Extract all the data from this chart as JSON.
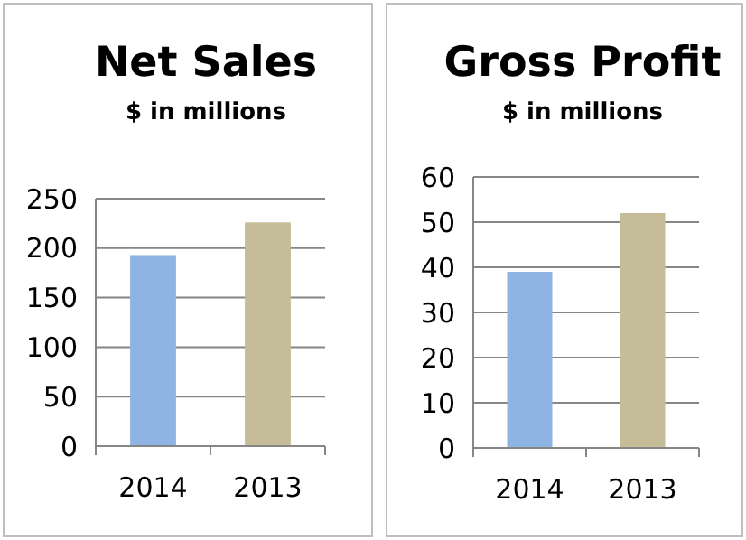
{
  "chart_data": [
    {
      "type": "bar",
      "title": "Net Sales",
      "subtitle": "$ in millions",
      "categories": [
        "2014",
        "2013"
      ],
      "values": [
        193,
        226
      ],
      "colors": [
        "#8db4e2",
        "#c4bd97"
      ],
      "ylim": [
        0,
        250
      ],
      "yticks": [
        0,
        50,
        100,
        150,
        200,
        250
      ],
      "grid": "y"
    },
    {
      "type": "bar",
      "title": "Gross Profit",
      "subtitle": "$ in millions",
      "categories": [
        "2014",
        "2013"
      ],
      "values": [
        39,
        52
      ],
      "colors": [
        "#8db4e2",
        "#c4bd97"
      ],
      "ylim": [
        0,
        60
      ],
      "yticks": [
        0,
        10,
        20,
        30,
        40,
        50,
        60
      ],
      "grid": "y"
    }
  ]
}
